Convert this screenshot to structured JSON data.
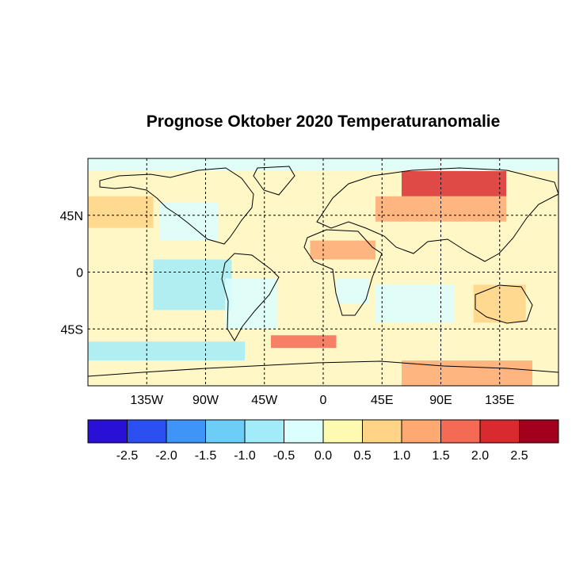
{
  "title": "Prognose Oktober 2020 Temperaturanomalie",
  "map": {
    "projection": "equirectangular",
    "lon_range": [
      -180,
      180
    ],
    "lat_range": [
      -90,
      90
    ],
    "gridlines": "dashed",
    "x_ticks": [
      {
        "value": -135,
        "label": "135W"
      },
      {
        "value": -90,
        "label": "90W"
      },
      {
        "value": -45,
        "label": "45W"
      },
      {
        "value": 0,
        "label": "0"
      },
      {
        "value": 45,
        "label": "45E"
      },
      {
        "value": 90,
        "label": "90E"
      },
      {
        "value": 135,
        "label": "135E"
      }
    ],
    "y_ticks": [
      {
        "value": 45,
        "label": "45N"
      },
      {
        "value": 0,
        "label": "0"
      },
      {
        "value": -45,
        "label": "45S"
      }
    ],
    "regions": [
      {
        "name": "arctic-cold",
        "lon": [
          -180,
          180
        ],
        "lat": [
          80,
          90
        ],
        "anomaly": -0.5
      },
      {
        "name": "siberia-warm",
        "lon": [
          60,
          140
        ],
        "lat": [
          60,
          80
        ],
        "anomaly": 2.0
      },
      {
        "name": "eurasia-warm",
        "lon": [
          40,
          140
        ],
        "lat": [
          40,
          60
        ],
        "anomaly": 1.0
      },
      {
        "name": "north-pacific-warm",
        "lon": [
          -180,
          -130
        ],
        "lat": [
          35,
          60
        ],
        "anomaly": 0.5
      },
      {
        "name": "north-america-cold",
        "lon": [
          -125,
          -80
        ],
        "lat": [
          25,
          55
        ],
        "anomaly": -0.5
      },
      {
        "name": "east-pacific-cold",
        "lon": [
          -130,
          -70
        ],
        "lat": [
          -30,
          10
        ],
        "anomaly": -1.0
      },
      {
        "name": "south-america-cold",
        "lon": [
          -75,
          -35
        ],
        "lat": [
          -45,
          -5
        ],
        "anomaly": -0.5
      },
      {
        "name": "sahel-warm",
        "lon": [
          -10,
          40
        ],
        "lat": [
          10,
          25
        ],
        "anomaly": 1.0
      },
      {
        "name": "southern-africa-cold",
        "lon": [
          10,
          35
        ],
        "lat": [
          -25,
          -5
        ],
        "anomaly": -0.5
      },
      {
        "name": "indian-ocean-cold",
        "lon": [
          40,
          100
        ],
        "lat": [
          -40,
          -10
        ],
        "anomaly": -0.5
      },
      {
        "name": "australia-warm",
        "lon": [
          115,
          155
        ],
        "lat": [
          -40,
          -10
        ],
        "anomaly": 0.5
      },
      {
        "name": "south-atlantic-warm",
        "lon": [
          -40,
          10
        ],
        "lat": [
          -60,
          -50
        ],
        "anomaly": 1.5
      },
      {
        "name": "antarctica-warm",
        "lon": [
          60,
          160
        ],
        "lat": [
          -90,
          -70
        ],
        "anomaly": 1.0
      },
      {
        "name": "southern-ocean-cold",
        "lon": [
          -180,
          -60
        ],
        "lat": [
          -70,
          -55
        ],
        "anomaly": -1.0
      }
    ]
  },
  "colorbar": {
    "colors": [
      "#2a0fd4",
      "#2b4ff0",
      "#3f94f7",
      "#6ccdf6",
      "#a2ecf9",
      "#dbffff",
      "#fffab2",
      "#ffd486",
      "#ffa972",
      "#f46a55",
      "#d92a2f",
      "#a3001d"
    ],
    "labels": [
      "-2.5",
      "-2.0",
      "-1.5",
      "-1.0",
      "-0.5",
      "0.0",
      "0.5",
      "1.0",
      "1.5",
      "2.0",
      "2.5"
    ],
    "boundaries": [
      -2.5,
      -2.0,
      -1.5,
      -1.0,
      -0.5,
      0.0,
      0.5,
      1.0,
      1.5,
      2.0,
      2.5
    ]
  }
}
